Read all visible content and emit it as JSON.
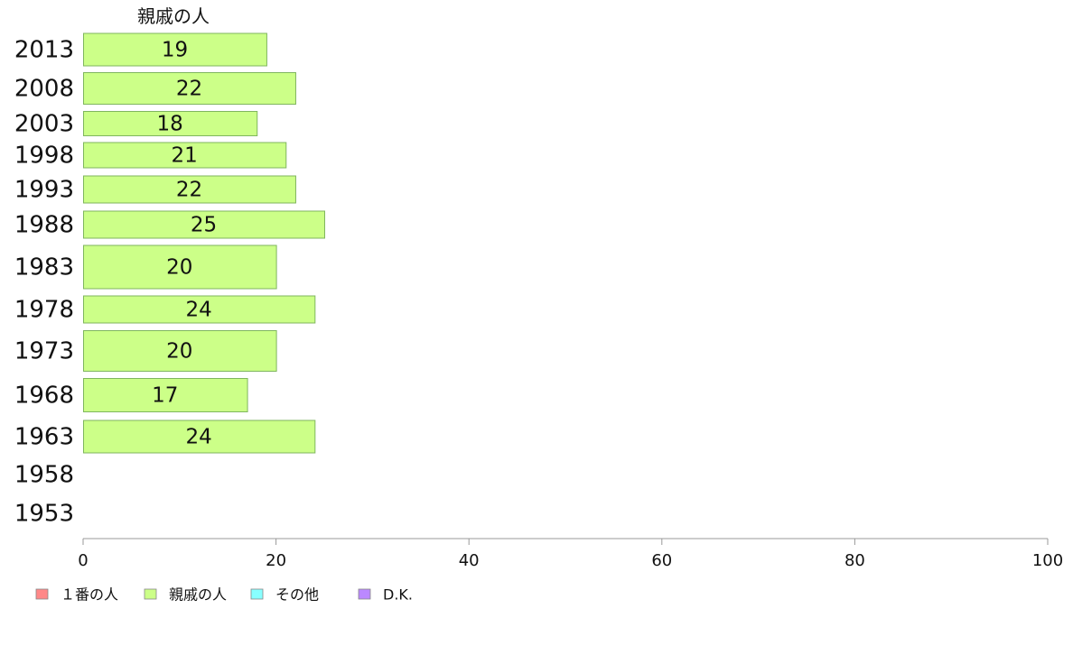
{
  "chart_data": {
    "type": "bar",
    "orientation": "horizontal",
    "column_title": "親戚の人",
    "categories": [
      "2013",
      "2008",
      "2003",
      "1998",
      "1993",
      "1988",
      "1983",
      "1978",
      "1973",
      "1968",
      "1963",
      "1958",
      "1953"
    ],
    "series": [
      {
        "name": "親戚の人",
        "color": "#ccff88",
        "values": [
          19,
          22,
          18,
          21,
          22,
          25,
          20,
          24,
          20,
          17,
          24,
          null,
          null
        ],
        "labels": [
          "19",
          "22",
          "18",
          "21",
          "22",
          "25",
          "20",
          "24",
          "20",
          "17",
          "24",
          "",
          ""
        ]
      }
    ],
    "xlim": [
      0,
      100
    ],
    "xticks": [
      0,
      20,
      40,
      60,
      80,
      100
    ],
    "grid": false,
    "legend_position": "bottom-left",
    "legend": [
      {
        "label": "１番の人",
        "color": "#ff8888"
      },
      {
        "label": "親戚の人",
        "color": "#ccff88"
      },
      {
        "label": "その他",
        "color": "#88ffff"
      },
      {
        "label": "D.K.",
        "color": "#bb88ff"
      }
    ]
  }
}
